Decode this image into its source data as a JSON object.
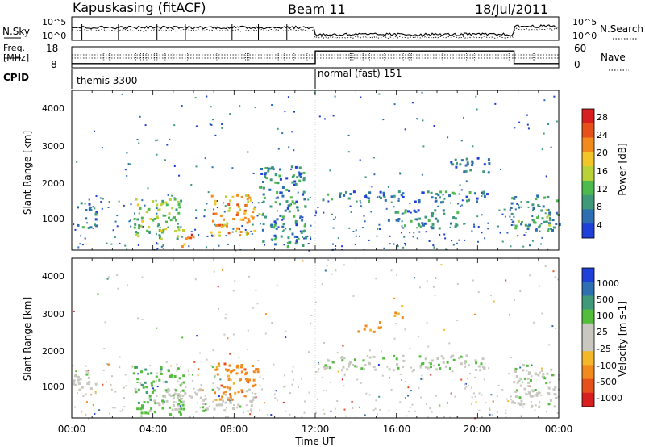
{
  "header": {
    "station": "Kapuskasing (fitACF)",
    "beam": "Beam 11",
    "date": "18/Jul/2011"
  },
  "noise_panel": {
    "left_label": "N.Sky",
    "right_label": "N.Search",
    "left_ticks": [
      "10^5",
      "10^0"
    ],
    "right_ticks": [
      "10^5",
      "10^0"
    ]
  },
  "freq_panel": {
    "left_label_1": "Freq.",
    "left_label_2": "[MHz]",
    "left_ticks": [
      "18",
      "8"
    ],
    "right_ticks": [
      "60",
      "0"
    ],
    "right_label": "Nave",
    "cpid_label": "CPID",
    "cpid_segments": [
      {
        "label": "themis 3300",
        "start_hour": 0,
        "end_hour": 12
      },
      {
        "label": "normal (fast) 151",
        "start_hour": 12,
        "end_hour": 24
      }
    ]
  },
  "time_axis": {
    "label": "Time UT",
    "ticks": [
      "00:00",
      "04:00",
      "08:00",
      "12:00",
      "16:00",
      "20:00",
      "00:00"
    ]
  },
  "power_panel": {
    "ylabel": "Slant Range [km]",
    "yticks": [
      "4000",
      "3000",
      "2000",
      "1000"
    ],
    "cbar_label": "Power [dB]",
    "cbar_ticks": [
      "28",
      "24",
      "20",
      "16",
      "12",
      "8",
      "4"
    ]
  },
  "velocity_panel": {
    "ylabel": "Slant Range [km]",
    "yticks": [
      "4000",
      "3000",
      "2000",
      "1000"
    ],
    "cbar_label": "Velocity [m s-1]",
    "cbar_ticks": [
      "1000",
      "500",
      "100",
      "25",
      "-25",
      "-100",
      "-500",
      "-1000"
    ]
  },
  "chart_data": [
    {
      "type": "heatmap",
      "title": "Power",
      "x_unit": "hours UT",
      "xlim": [
        0,
        24
      ],
      "ylim": [
        180,
        4500
      ],
      "ylabel": "Slant Range [km]",
      "xlabel": "Time UT",
      "colorbar": {
        "label": "Power [dB]",
        "range": [
          0,
          30
        ],
        "colors": [
          "#1f3fd9",
          "#2d6fb0",
          "#3f9a7a",
          "#4cba4c",
          "#b9d23a",
          "#f2c629",
          "#f28a1e",
          "#e6501a",
          "#d81e1e"
        ]
      },
      "regions": [
        {
          "x": [
            0.1,
            1.2
          ],
          "y": [
            800,
            1500
          ],
          "level": 6
        },
        {
          "x": [
            3.0,
            5.5
          ],
          "y": [
            500,
            1600
          ],
          "level": 13
        },
        {
          "x": [
            5.4,
            6.0
          ],
          "y": [
            250,
            700
          ],
          "level": 24
        },
        {
          "x": [
            6.8,
            9.2
          ],
          "y": [
            600,
            1700
          ],
          "level": 20
        },
        {
          "x": [
            9.2,
            11.5
          ],
          "y": [
            300,
            2500
          ],
          "level": 7
        },
        {
          "x": [
            12.3,
            20.6
          ],
          "y": [
            1500,
            1800
          ],
          "level": 6
        },
        {
          "x": [
            15.5,
            19.0
          ],
          "y": [
            800,
            1300
          ],
          "level": 8
        },
        {
          "x": [
            18.5,
            20.8
          ],
          "y": [
            2300,
            2700
          ],
          "level": 5
        },
        {
          "x": [
            21.6,
            24.0
          ],
          "y": [
            700,
            1700
          ],
          "level": 9
        }
      ]
    },
    {
      "type": "heatmap",
      "title": "Velocity",
      "x_unit": "hours UT",
      "xlim": [
        0,
        24
      ],
      "ylim": [
        180,
        4500
      ],
      "ylabel": "Slant Range [km]",
      "xlabel": "Time UT",
      "colorbar": {
        "label": "Velocity [m s-1]",
        "range": [
          -1000,
          1000
        ],
        "colors": [
          "#d81e1e",
          "#e6501a",
          "#f28a1e",
          "#f5b72a",
          "#c8c8c0",
          "#c8c8c0",
          "#52be3c",
          "#3f9a7a",
          "#2d6fb0",
          "#1f3fd9"
        ]
      },
      "regions": [
        {
          "x": [
            0.0,
            1.2
          ],
          "y": [
            900,
            1500
          ],
          "value": 0
        },
        {
          "x": [
            3.0,
            5.5
          ],
          "y": [
            300,
            1600
          ],
          "value": 150
        },
        {
          "x": [
            4.0,
            9.0
          ],
          "y": [
            400,
            1000
          ],
          "value": 0
        },
        {
          "x": [
            6.8,
            9.2
          ],
          "y": [
            700,
            1700
          ],
          "value": -200
        },
        {
          "x": [
            12.3,
            20.6
          ],
          "y": [
            1500,
            1900
          ],
          "value": 0
        },
        {
          "x": [
            14.0,
            15.2
          ],
          "y": [
            2500,
            2800
          ],
          "value": -150
        },
        {
          "x": [
            15.8,
            16.3
          ],
          "y": [
            2900,
            3300
          ],
          "value": -150
        },
        {
          "x": [
            21.6,
            24.0
          ],
          "y": [
            500,
            1700
          ],
          "value": 0
        }
      ]
    },
    {
      "type": "line",
      "title": "N.Sky / N.Search",
      "x_unit": "hours UT",
      "xlim": [
        0,
        24
      ],
      "scale": "log",
      "ylim": [
        1,
        100000
      ]
    },
    {
      "type": "line",
      "title": "Freq / Nave",
      "x_unit": "hours UT",
      "xlim": [
        0,
        24
      ],
      "series": [
        {
          "name": "Freq.",
          "x": [
            0,
            12,
            12,
            21.8,
            21.8,
            24
          ],
          "y": [
            10,
            10,
            16,
            16,
            10,
            10
          ]
        }
      ],
      "ylim": [
        8,
        18
      ]
    }
  ]
}
